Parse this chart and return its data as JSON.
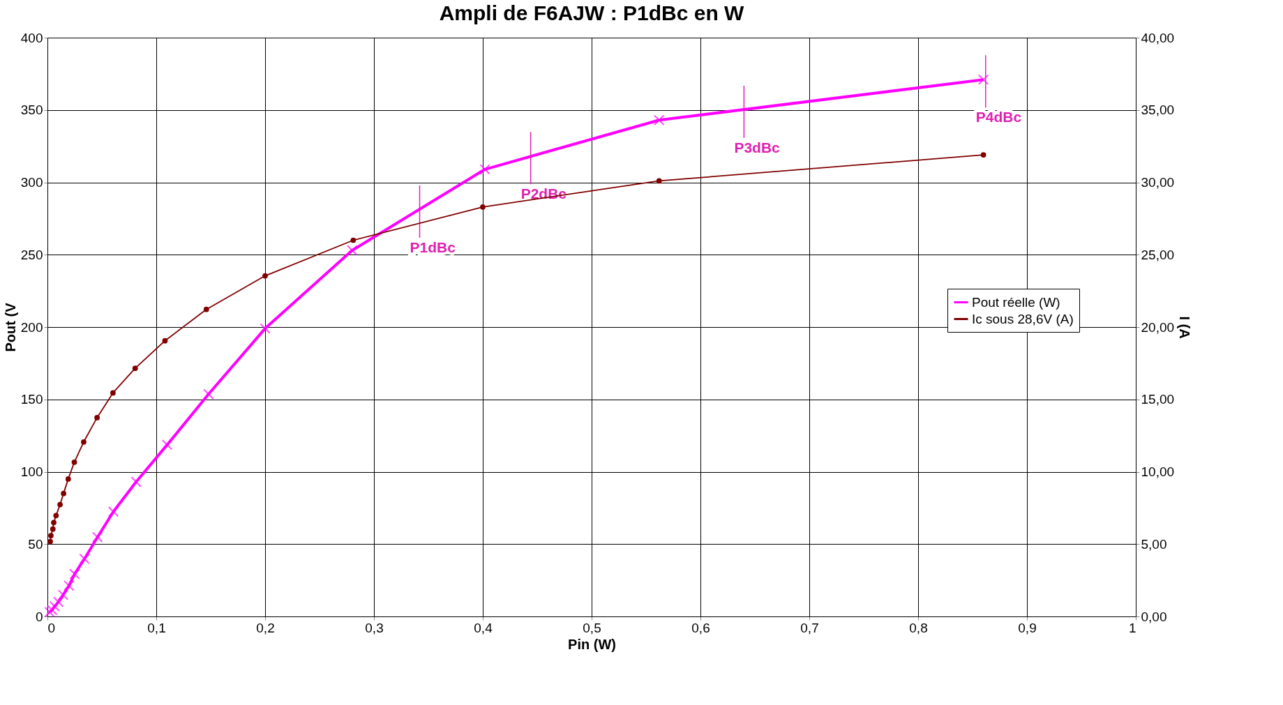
{
  "chart_data": {
    "type": "line",
    "title": "Ampli de F6AJW : P1dBc en W",
    "xlabel": "Pin (W)",
    "ylabel": "Pout (V",
    "y2label": "I (A",
    "xlim": [
      0,
      1
    ],
    "xticks": [
      0,
      {
        "value": 0.1,
        "label": "0,1"
      },
      {
        "value": 0.2,
        "label": "0,2"
      },
      {
        "value": 0.3,
        "label": "0,3"
      },
      {
        "value": 0.4,
        "label": "0,4"
      },
      {
        "value": 0.5,
        "label": "0,5"
      },
      {
        "value": 0.6,
        "label": "0,6"
      },
      {
        "value": 0.7,
        "label": "0,7"
      },
      {
        "value": 0.8,
        "label": "0,8"
      },
      {
        "value": 0.9,
        "label": "0,9"
      },
      1
    ],
    "ylim": [
      0,
      400
    ],
    "yticks": [
      0,
      50,
      100,
      150,
      200,
      250,
      300,
      350,
      400
    ],
    "y2lim": [
      0,
      40
    ],
    "y2ticks": [
      {
        "value": 0,
        "label": "0,00"
      },
      {
        "value": 5,
        "label": "5,00"
      },
      {
        "value": 10,
        "label": "10,00"
      },
      {
        "value": 15,
        "label": "15,00"
      },
      {
        "value": 20,
        "label": "20,00"
      },
      {
        "value": 25,
        "label": "25,00"
      },
      {
        "value": 30,
        "label": "30,00"
      },
      {
        "value": 35,
        "label": "35,00"
      },
      {
        "value": 40,
        "label": "40,00"
      }
    ],
    "grid": true,
    "legend": "right",
    "line_style": "solid",
    "series": [
      {
        "name": "Pout réelle (W)",
        "color": "#ff00ff",
        "marker": "cross",
        "axis": "y",
        "x": [
          0.002,
          0.0043,
          0.0066,
          0.0101,
          0.0144,
          0.0198,
          0.025,
          0.034,
          0.046,
          0.0606,
          0.0815,
          0.11,
          0.148,
          0.2,
          0.28,
          0.402,
          0.562,
          0.86
        ],
        "values": [
          3,
          4.4,
          7,
          10,
          14.9,
          21.3,
          29.3,
          39.8,
          54.8,
          72.4,
          93,
          118.6,
          153.6,
          199,
          253,
          309,
          343,
          371
        ]
      },
      {
        "name": "Ic sous 28,6V (A)",
        "color": "#800000",
        "marker": "circle",
        "axis": "y2",
        "x": [
          0.0026,
          0.0032,
          0.005,
          0.0058,
          0.0079,
          0.0116,
          0.0148,
          0.0191,
          0.0247,
          0.0333,
          0.0456,
          0.0602,
          0.0806,
          0.108,
          0.146,
          0.2,
          0.281,
          0.4,
          0.562,
          0.86
        ],
        "values": [
          5.18,
          5.59,
          6.04,
          6.49,
          6.97,
          7.73,
          8.5,
          9.5,
          10.66,
          12.06,
          13.74,
          15.45,
          17.15,
          19.05,
          21.22,
          23.54,
          26.0,
          28.3,
          30.1,
          31.9
        ]
      }
    ],
    "annotations": [
      {
        "text": "P1dBc",
        "x": 0.342,
        "y": 281
      },
      {
        "text": "P2dBc",
        "x": 0.444,
        "y": 318
      },
      {
        "text": "P3dBc",
        "x": 0.64,
        "y": 350
      },
      {
        "text": "P4dBc",
        "x": 0.862,
        "y": 371
      }
    ]
  }
}
